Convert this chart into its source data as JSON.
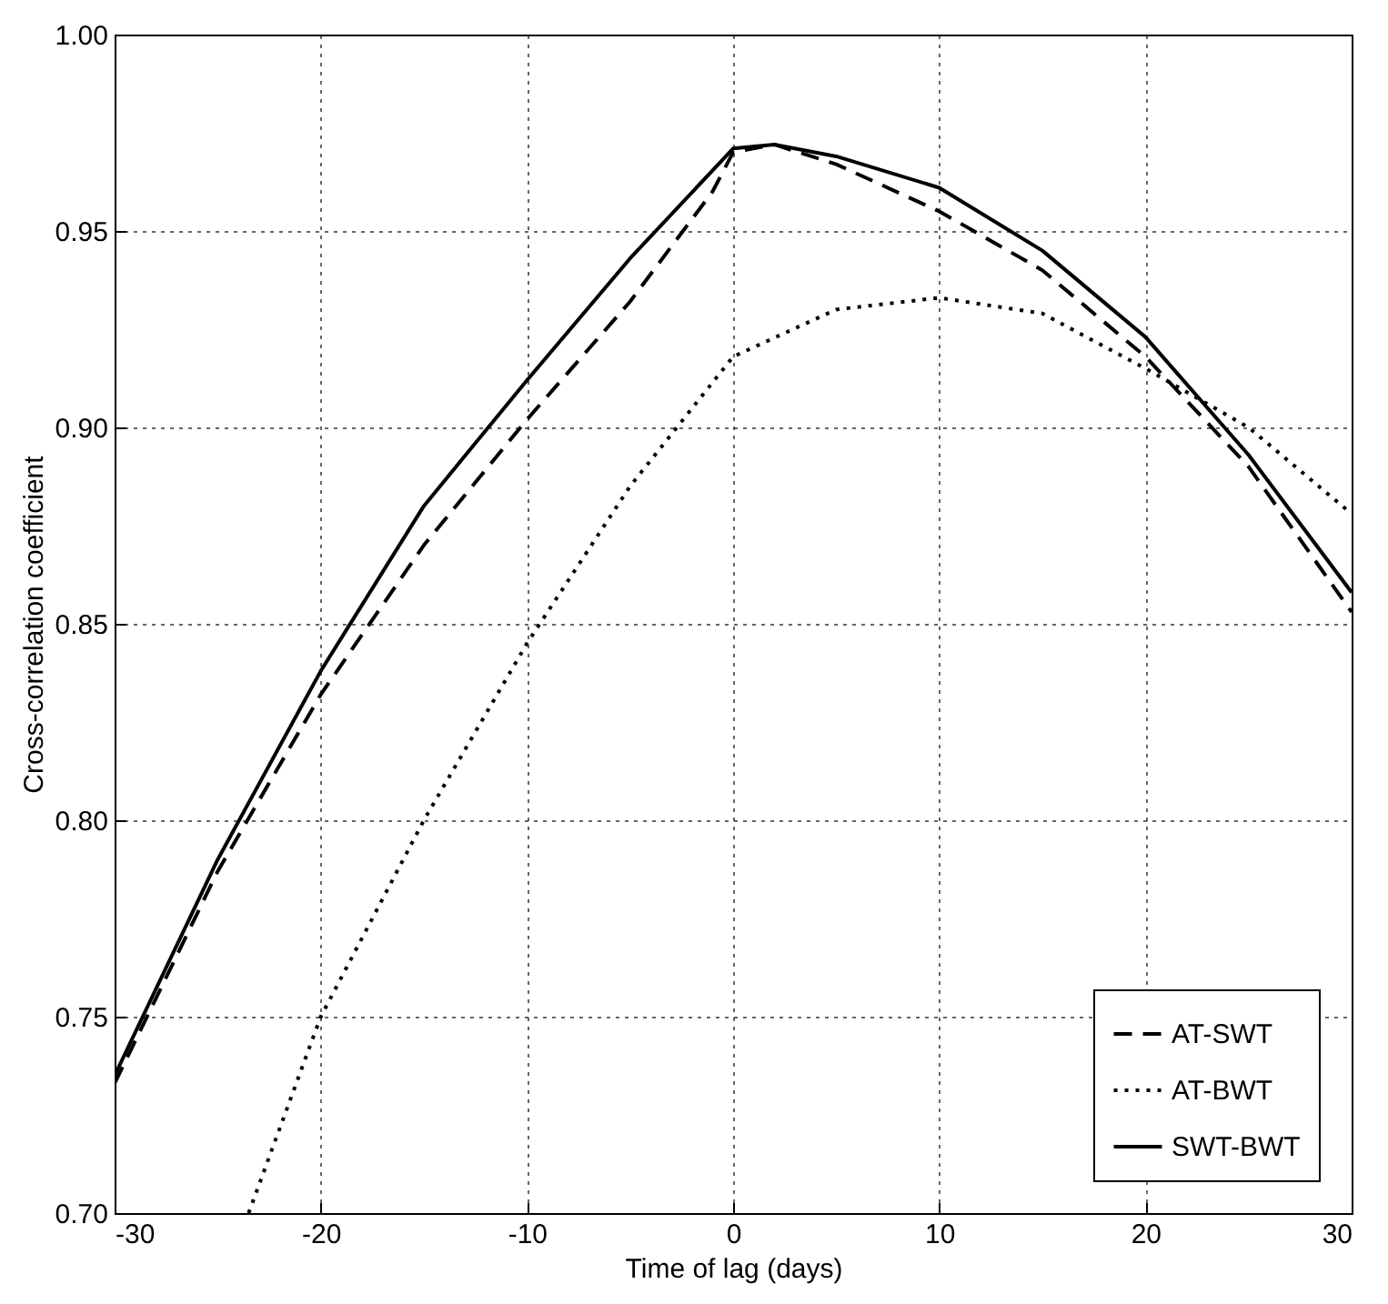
{
  "chart_data": {
    "type": "line",
    "xlabel": "Time of lag (days)",
    "ylabel": "Cross-correlation coefficient",
    "xlim": [
      -30,
      30
    ],
    "xticks": [
      -30,
      -20,
      -10,
      0,
      10,
      20,
      30
    ],
    "ylim": [
      0.7,
      1.0
    ],
    "yticks": [
      {
        "value": 0.7,
        "label": "0.70"
      },
      {
        "value": 0.75,
        "label": "0.75"
      },
      {
        "value": 0.8,
        "label": "0.80"
      },
      {
        "value": 0.85,
        "label": "0.85"
      },
      {
        "value": 0.9,
        "label": "0.90"
      },
      {
        "value": 0.95,
        "label": "0.95"
      },
      {
        "value": 1.0,
        "label": "1.00"
      }
    ],
    "grid": true,
    "legend": "bottom right",
    "marker": "none",
    "series": [
      {
        "name": "AT-SWT",
        "color": "#000000",
        "line_style": "dashed",
        "x": [
          -30,
          -25,
          -20,
          -15,
          -10,
          -5,
          -1,
          0,
          2,
          5,
          10,
          15,
          20,
          25,
          30
        ],
        "values": [
          0.733,
          0.787,
          0.832,
          0.87,
          0.902,
          0.932,
          0.96,
          0.97,
          0.972,
          0.967,
          0.955,
          0.94,
          0.918,
          0.89,
          0.853
        ]
      },
      {
        "name": "AT-BWT",
        "color": "#000000",
        "line_style": "dotted",
        "x": [
          -23.5,
          -20,
          -15,
          -10,
          -5,
          0,
          5,
          10,
          15,
          20,
          25,
          30
        ],
        "values": [
          0.7,
          0.75,
          0.8,
          0.845,
          0.885,
          0.918,
          0.93,
          0.933,
          0.929,
          0.915,
          0.9,
          0.878
        ]
      },
      {
        "name": "SWT-BWT",
        "color": "#000000",
        "line_style": "solid",
        "x": [
          -30,
          -25,
          -20,
          -15,
          -10,
          -5,
          0,
          2,
          5,
          10,
          15,
          20,
          25,
          30
        ],
        "values": [
          0.735,
          0.79,
          0.838,
          0.88,
          0.912,
          0.943,
          0.971,
          0.972,
          0.969,
          0.961,
          0.945,
          0.923,
          0.893,
          0.858
        ]
      }
    ]
  }
}
